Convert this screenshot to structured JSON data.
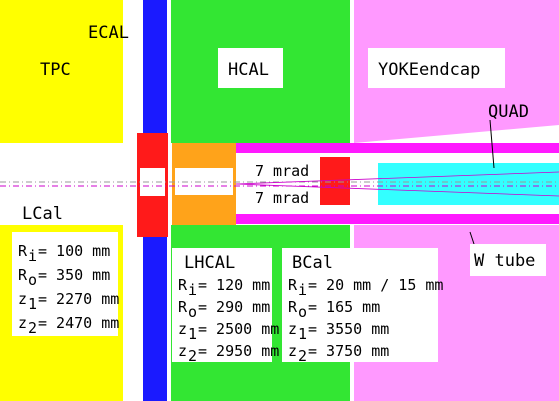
{
  "labels": {
    "tpc": "TPC",
    "ecal": "ECAL",
    "hcal": "HCAL",
    "yoke": "YOKEendcap",
    "quad": "QUAD",
    "mrad_top": "7 mrad",
    "mrad_bottom": "7 mrad",
    "lcal": "LCal",
    "wtube": "W tube",
    "lhcal": "LHCAL",
    "bcal": "BCal"
  },
  "params": {
    "lcal": [
      {
        "symbol": "R",
        "sub": "i",
        "value": "= 100 mm"
      },
      {
        "symbol": "R",
        "sub": "o",
        "value": "= 350 mm"
      },
      {
        "symbol": "z",
        "sub": "1",
        "value": "= 2270 mm"
      },
      {
        "symbol": "z",
        "sub": "2",
        "value": "= 2470 mm"
      }
    ],
    "lhcal": [
      {
        "symbol": "R",
        "sub": "i",
        "value": "= 120 mm"
      },
      {
        "symbol": "R",
        "sub": "o",
        "value": "= 290 mm"
      },
      {
        "symbol": "z",
        "sub": "1",
        "value": "= 2500 mm"
      },
      {
        "symbol": "z",
        "sub": "2",
        "value": "= 2950 mm"
      }
    ],
    "bcal": [
      {
        "symbol": "R",
        "sub": "i",
        "value": "= 20 mm / 15 mm"
      },
      {
        "symbol": "R",
        "sub": "o",
        "value": "= 165 mm"
      },
      {
        "symbol": "z",
        "sub": "1",
        "value": "= 3550 mm"
      },
      {
        "symbol": "z",
        "sub": "2",
        "value": "= 3750 mm"
      }
    ]
  }
}
